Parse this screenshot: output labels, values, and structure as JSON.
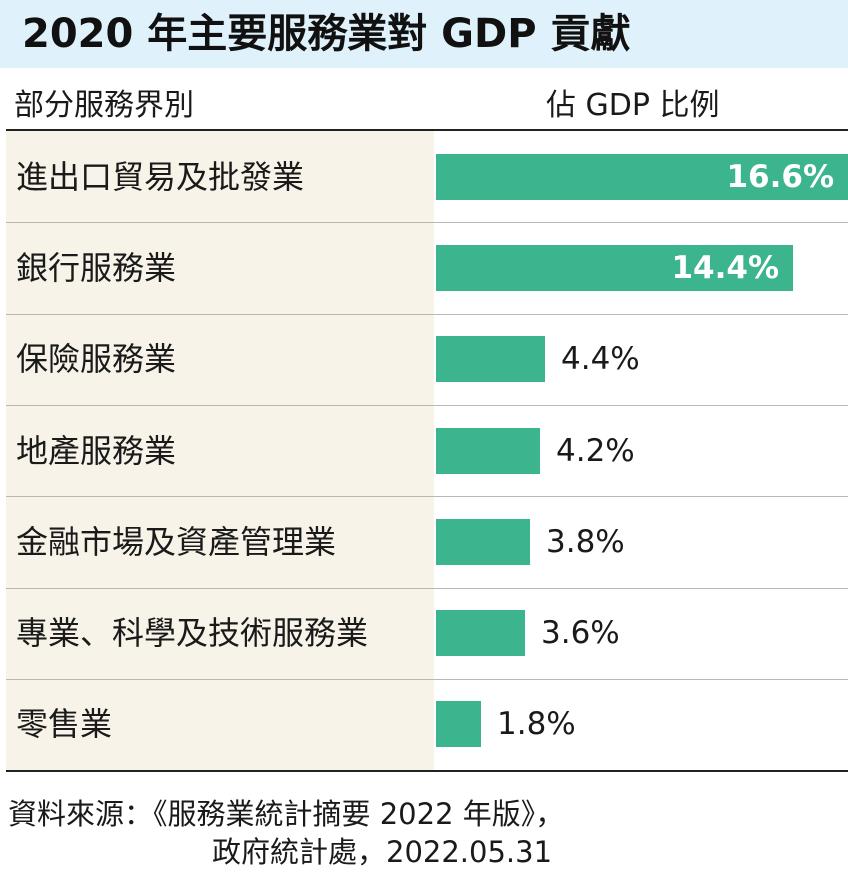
{
  "title": "2020 年主要服務業對 GDP 貢獻",
  "header": {
    "category_col": "部分服務界別",
    "value_col": "佔 GDP 比例"
  },
  "colors": {
    "bar": "#3cb48e",
    "title_bg": "#dff2fb",
    "label_bg": "#f7f3e8"
  },
  "chart_data": {
    "type": "bar",
    "orientation": "horizontal",
    "title": "2020 年主要服務業對 GDP 貢獻",
    "xlabel": "佔 GDP 比例",
    "ylabel": "部分服務界別",
    "unit": "%",
    "categories": [
      "進出口貿易及批發業",
      "銀行服務業",
      "保險服務業",
      "地產服務業",
      "金融市場及資產管理業",
      "專業、科學及技術服務業",
      "零售業"
    ],
    "values": [
      16.6,
      14.4,
      4.4,
      4.2,
      3.8,
      3.6,
      1.8
    ],
    "value_labels": [
      "16.6%",
      "14.4%",
      "4.4%",
      "4.2%",
      "3.8%",
      "3.6%",
      "1.8%"
    ],
    "xlim": [
      0,
      16.6
    ],
    "grid": false,
    "legend": "none"
  },
  "source": {
    "line1": "資料來源：《服務業統計摘要 2022 年版》，",
    "line2": "政府統計處，2022.05.31"
  }
}
